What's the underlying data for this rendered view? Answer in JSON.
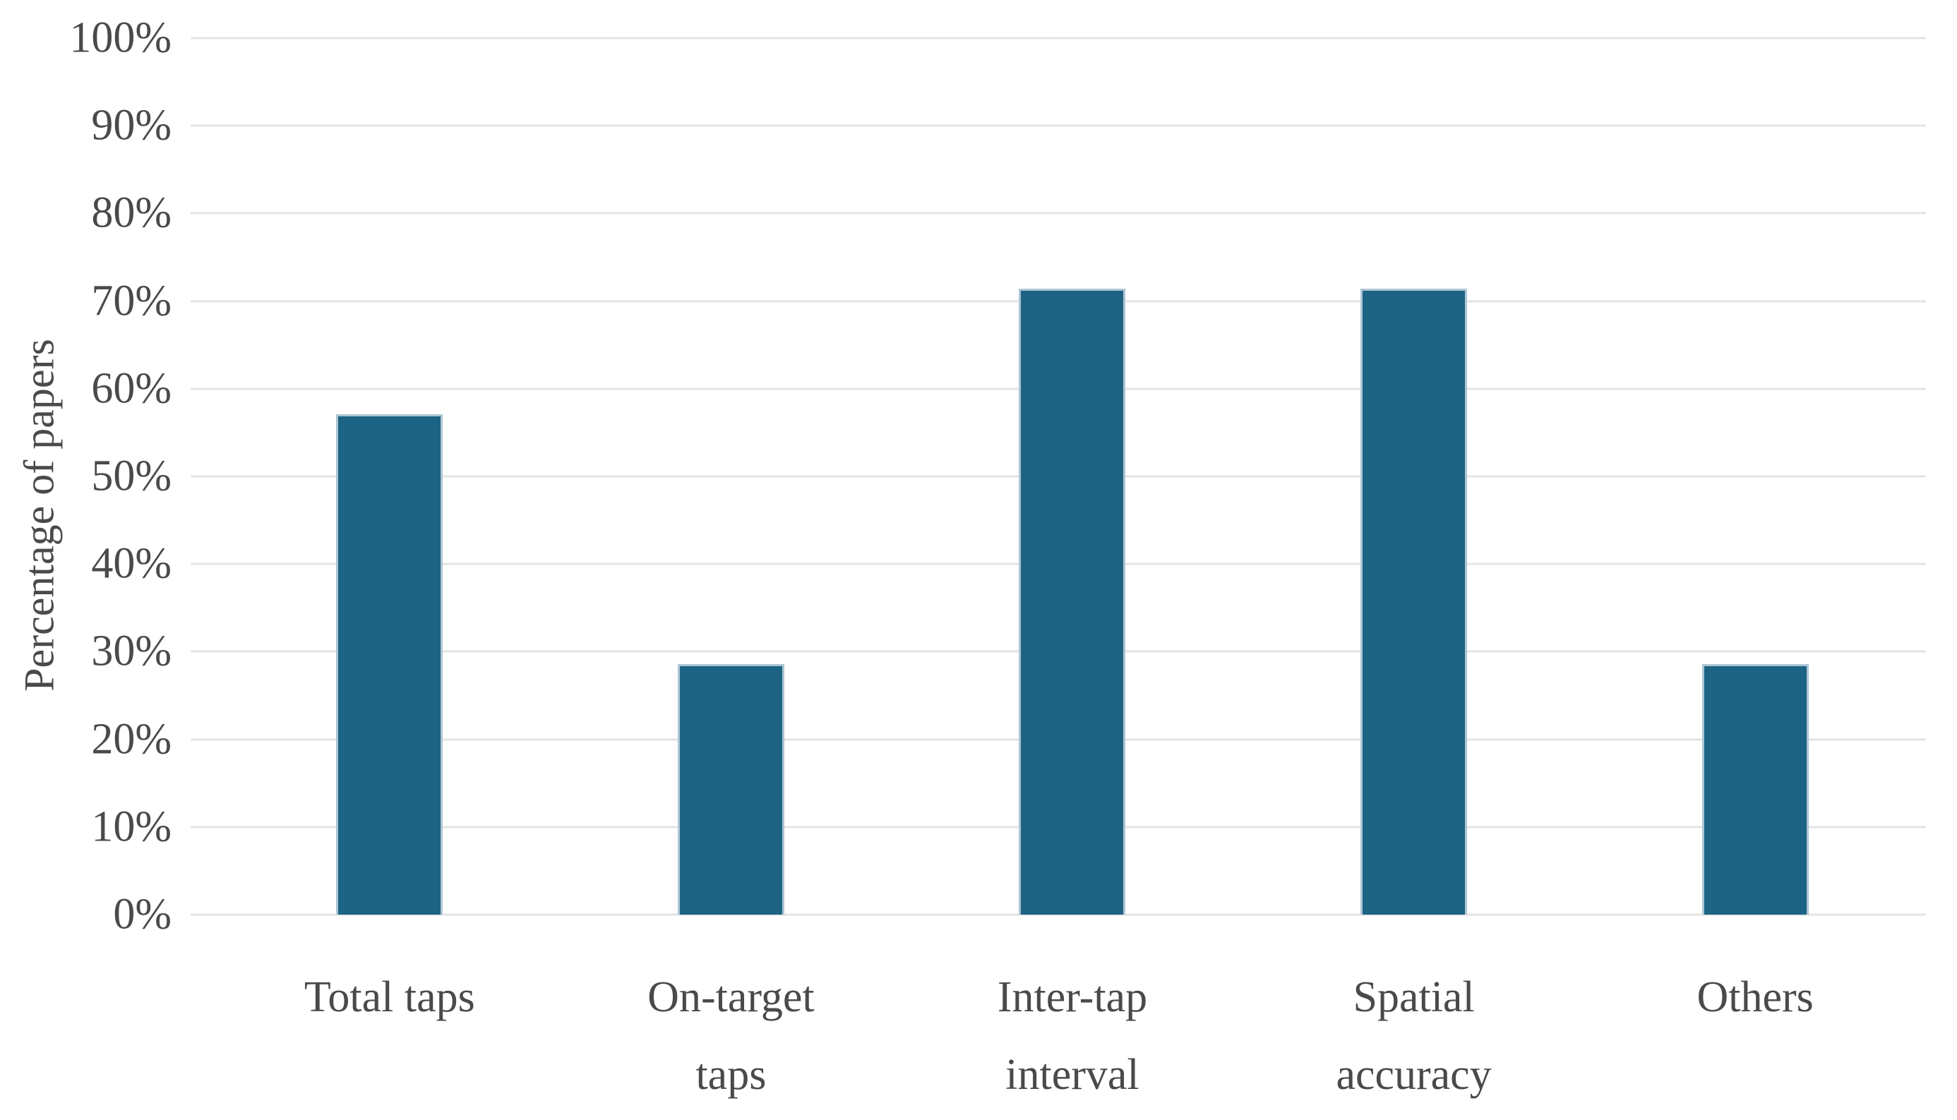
{
  "chart_data": {
    "type": "bar",
    "title": "",
    "xlabel": "",
    "ylabel": "Percentage of papers",
    "categories": [
      "Total taps",
      "On-target\ntaps",
      "Inter-tap\ninterval",
      "Spatial\naccuracy",
      "Others"
    ],
    "values": [
      57.1,
      28.6,
      71.4,
      71.4,
      28.6
    ],
    "unit": "%",
    "ylim": [
      0,
      100
    ],
    "ytick_step": 10,
    "yticks": [
      "0%",
      "10%",
      "20%",
      "30%",
      "40%",
      "50%",
      "60%",
      "70%",
      "80%",
      "90%",
      "100%"
    ],
    "grid": true,
    "legend": "none"
  },
  "colors": {
    "bar_fill": "#1d6383",
    "bar_border": "#adc6d4",
    "gridline": "#e3e3e3",
    "text": "#4a4a4a",
    "background": "#ffffff"
  }
}
